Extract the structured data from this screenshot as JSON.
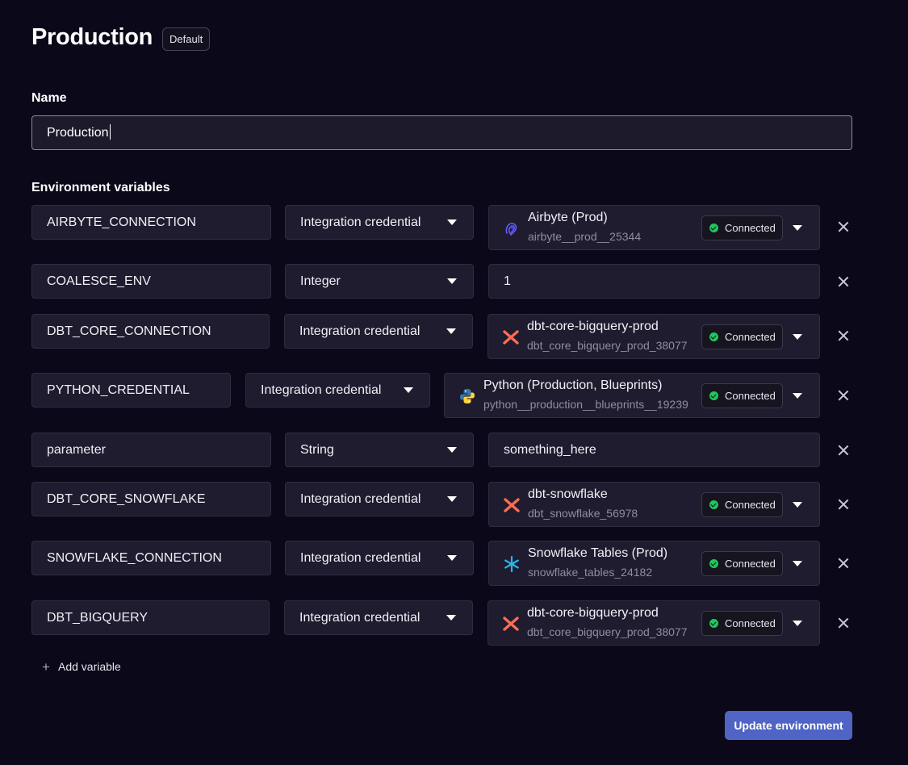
{
  "header": {
    "title": "Production",
    "badge": "Default"
  },
  "name_field": {
    "label": "Name",
    "value": "Production"
  },
  "env_section": {
    "label": "Environment variables"
  },
  "variables": [
    {
      "key": "AIRBYTE_CONNECTION",
      "type": "Integration credential",
      "value_kind": "credential",
      "credential_name": "Airbyte (Prod)",
      "credential_id": "airbyte__prod__25344",
      "status": "Connected",
      "icon": "airbyte-icon"
    },
    {
      "key": "COALESCE_ENV",
      "type": "Integer",
      "value_kind": "text",
      "value": "1"
    },
    {
      "key": "DBT_CORE_CONNECTION",
      "type": "Integration credential",
      "value_kind": "credential",
      "credential_name": "dbt-core-bigquery-prod",
      "credential_id": "dbt_core_bigquery_prod_38077",
      "status": "Connected",
      "icon": "dbt-icon"
    },
    {
      "key": "PYTHON_CREDENTIAL",
      "type": "Integration credential",
      "value_kind": "credential",
      "credential_name": "Python (Production, Blueprints)",
      "credential_id": "python__production__blueprints__19239",
      "status": "Connected",
      "icon": "python-icon"
    },
    {
      "key": "parameter",
      "type": "String",
      "value_kind": "text",
      "value": "something_here"
    },
    {
      "key": "DBT_CORE_SNOWFLAKE",
      "type": "Integration credential",
      "value_kind": "credential",
      "credential_name": "dbt-snowflake",
      "credential_id": "dbt_snowflake_56978",
      "status": "Connected",
      "icon": "dbt-icon"
    },
    {
      "key": "SNOWFLAKE_CONNECTION",
      "type": "Integration credential",
      "value_kind": "credential",
      "credential_name": "Snowflake Tables (Prod)",
      "credential_id": "snowflake_tables_24182",
      "status": "Connected",
      "icon": "snowflake-icon"
    },
    {
      "key": "DBT_BIGQUERY",
      "type": "Integration credential",
      "value_kind": "credential",
      "credential_name": "dbt-core-bigquery-prod",
      "credential_id": "dbt_core_bigquery_prod_38077",
      "status": "Connected",
      "icon": "dbt-icon"
    }
  ],
  "actions": {
    "add_variable": "Add variable",
    "update": "Update environment"
  },
  "colors": {
    "background": "#0b0819",
    "primary_button": "#4f64c4",
    "connected": "#22c55e",
    "dbt": "#fe6c52",
    "airbyte": "#615eff",
    "snowflake": "#29b5e8"
  }
}
